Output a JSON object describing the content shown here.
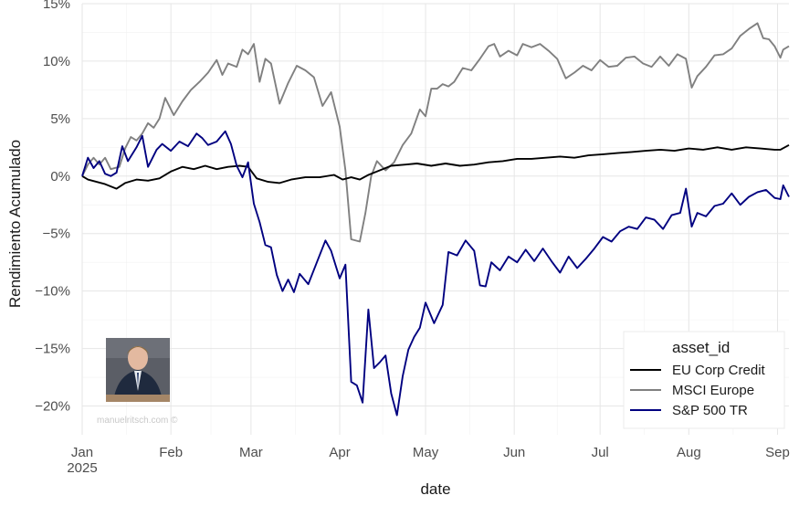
{
  "chart_data": {
    "type": "line",
    "xlabel": "date",
    "ylabel": "Rendimiento Acumulado",
    "y_unit": "%",
    "ylim": [
      -22.5,
      15
    ],
    "y_ticks": [
      {
        "value": 15,
        "label": "15%"
      },
      {
        "value": 10,
        "label": "10%"
      },
      {
        "value": 5,
        "label": "5%"
      },
      {
        "value": 0,
        "label": "0%"
      },
      {
        "value": -5,
        "label": "−5%"
      },
      {
        "value": -10,
        "label": "−10%"
      },
      {
        "value": -15,
        "label": "−15%"
      },
      {
        "value": -20,
        "label": "−20%"
      }
    ],
    "x_range": [
      "2025-01-01",
      "2025-09-05"
    ],
    "x_ticks": [
      {
        "date": "2025-01-01",
        "label": "Jan",
        "sublabel": "2025"
      },
      {
        "date": "2025-02-01",
        "label": "Feb"
      },
      {
        "date": "2025-03-01",
        "label": "Mar"
      },
      {
        "date": "2025-04-01",
        "label": "Apr"
      },
      {
        "date": "2025-05-01",
        "label": "May"
      },
      {
        "date": "2025-06-01",
        "label": "Jun"
      },
      {
        "date": "2025-07-01",
        "label": "Jul"
      },
      {
        "date": "2025-08-01",
        "label": "Aug"
      },
      {
        "date": "2025-09-01",
        "label": "Sep"
      }
    ],
    "grid": true,
    "legend": {
      "title": "asset_id",
      "position": "bottom-right"
    },
    "series": [
      {
        "name": "EU Corp Credit",
        "color": "#000000",
        "points": [
          [
            "2025-01-01",
            0
          ],
          [
            "2025-01-03",
            -0.3
          ],
          [
            "2025-01-06",
            -0.5
          ],
          [
            "2025-01-09",
            -0.7
          ],
          [
            "2025-01-13",
            -1.1
          ],
          [
            "2025-01-16",
            -0.6
          ],
          [
            "2025-01-20",
            -0.3
          ],
          [
            "2025-01-24",
            -0.4
          ],
          [
            "2025-01-28",
            -0.2
          ],
          [
            "2025-02-01",
            0.4
          ],
          [
            "2025-02-05",
            0.8
          ],
          [
            "2025-02-09",
            0.6
          ],
          [
            "2025-02-13",
            0.9
          ],
          [
            "2025-02-17",
            0.6
          ],
          [
            "2025-02-21",
            0.8
          ],
          [
            "2025-02-25",
            0.9
          ],
          [
            "2025-02-28",
            0.8
          ],
          [
            "2025-03-03",
            -0.2
          ],
          [
            "2025-03-07",
            -0.5
          ],
          [
            "2025-03-11",
            -0.6
          ],
          [
            "2025-03-15",
            -0.3
          ],
          [
            "2025-03-20",
            -0.1
          ],
          [
            "2025-03-25",
            -0.1
          ],
          [
            "2025-03-30",
            0.1
          ],
          [
            "2025-04-02",
            -0.3
          ],
          [
            "2025-04-05",
            -0.1
          ],
          [
            "2025-04-08",
            -0.3
          ],
          [
            "2025-04-11",
            0.1
          ],
          [
            "2025-04-15",
            0.5
          ],
          [
            "2025-04-19",
            0.9
          ],
          [
            "2025-04-24",
            1.0
          ],
          [
            "2025-04-28",
            1.1
          ],
          [
            "2025-05-03",
            0.9
          ],
          [
            "2025-05-08",
            1.1
          ],
          [
            "2025-05-13",
            0.9
          ],
          [
            "2025-05-18",
            1.0
          ],
          [
            "2025-05-23",
            1.2
          ],
          [
            "2025-05-28",
            1.3
          ],
          [
            "2025-06-02",
            1.5
          ],
          [
            "2025-06-07",
            1.5
          ],
          [
            "2025-06-12",
            1.6
          ],
          [
            "2025-06-17",
            1.7
          ],
          [
            "2025-06-22",
            1.6
          ],
          [
            "2025-06-27",
            1.8
          ],
          [
            "2025-07-02",
            1.9
          ],
          [
            "2025-07-07",
            2.0
          ],
          [
            "2025-07-12",
            2.1
          ],
          [
            "2025-07-17",
            2.2
          ],
          [
            "2025-07-22",
            2.3
          ],
          [
            "2025-07-27",
            2.2
          ],
          [
            "2025-08-01",
            2.4
          ],
          [
            "2025-08-06",
            2.3
          ],
          [
            "2025-08-11",
            2.5
          ],
          [
            "2025-08-16",
            2.3
          ],
          [
            "2025-08-21",
            2.5
          ],
          [
            "2025-08-26",
            2.4
          ],
          [
            "2025-08-31",
            2.3
          ],
          [
            "2025-09-02",
            2.3
          ],
          [
            "2025-09-05",
            2.7
          ]
        ]
      },
      {
        "name": "MSCI Europe",
        "color": "#808080",
        "points": [
          [
            "2025-01-01",
            0
          ],
          [
            "2025-01-03",
            1.0
          ],
          [
            "2025-01-05",
            1.6
          ],
          [
            "2025-01-07",
            1.0
          ],
          [
            "2025-01-09",
            1.6
          ],
          [
            "2025-01-11",
            0.6
          ],
          [
            "2025-01-14",
            0.8
          ],
          [
            "2025-01-16",
            2.4
          ],
          [
            "2025-01-18",
            3.4
          ],
          [
            "2025-01-20",
            3.1
          ],
          [
            "2025-01-22",
            3.7
          ],
          [
            "2025-01-24",
            4.6
          ],
          [
            "2025-01-26",
            4.2
          ],
          [
            "2025-01-28",
            5.0
          ],
          [
            "2025-01-30",
            6.8
          ],
          [
            "2025-02-02",
            5.3
          ],
          [
            "2025-02-05",
            6.5
          ],
          [
            "2025-02-08",
            7.5
          ],
          [
            "2025-02-11",
            8.2
          ],
          [
            "2025-02-14",
            9.0
          ],
          [
            "2025-02-17",
            10.1
          ],
          [
            "2025-02-19",
            8.8
          ],
          [
            "2025-02-21",
            9.8
          ],
          [
            "2025-02-24",
            9.5
          ],
          [
            "2025-02-26",
            11.0
          ],
          [
            "2025-02-28",
            10.6
          ],
          [
            "2025-03-02",
            11.5
          ],
          [
            "2025-03-04",
            8.2
          ],
          [
            "2025-03-06",
            10.2
          ],
          [
            "2025-03-08",
            9.8
          ],
          [
            "2025-03-11",
            6.3
          ],
          [
            "2025-03-14",
            8.1
          ],
          [
            "2025-03-17",
            9.6
          ],
          [
            "2025-03-20",
            9.2
          ],
          [
            "2025-03-23",
            8.6
          ],
          [
            "2025-03-26",
            6.1
          ],
          [
            "2025-03-29",
            7.3
          ],
          [
            "2025-04-01",
            4.3
          ],
          [
            "2025-04-03",
            0.5
          ],
          [
            "2025-04-05",
            -5.5
          ],
          [
            "2025-04-08",
            -5.7
          ],
          [
            "2025-04-10",
            -3.2
          ],
          [
            "2025-04-12",
            0.0
          ],
          [
            "2025-04-14",
            1.3
          ],
          [
            "2025-04-17",
            0.5
          ],
          [
            "2025-04-20",
            1.2
          ],
          [
            "2025-04-23",
            2.7
          ],
          [
            "2025-04-26",
            3.7
          ],
          [
            "2025-04-29",
            5.8
          ],
          [
            "2025-05-01",
            5.2
          ],
          [
            "2025-05-03",
            7.6
          ],
          [
            "2025-05-05",
            7.6
          ],
          [
            "2025-05-07",
            8.0
          ],
          [
            "2025-05-09",
            7.8
          ],
          [
            "2025-05-11",
            8.2
          ],
          [
            "2025-05-14",
            9.4
          ],
          [
            "2025-05-17",
            9.2
          ],
          [
            "2025-05-20",
            10.2
          ],
          [
            "2025-05-23",
            11.3
          ],
          [
            "2025-05-25",
            11.5
          ],
          [
            "2025-05-27",
            10.4
          ],
          [
            "2025-05-30",
            10.9
          ],
          [
            "2025-06-02",
            10.5
          ],
          [
            "2025-06-04",
            11.5
          ],
          [
            "2025-06-07",
            11.2
          ],
          [
            "2025-06-10",
            11.5
          ],
          [
            "2025-06-13",
            10.9
          ],
          [
            "2025-06-16",
            10.2
          ],
          [
            "2025-06-19",
            8.5
          ],
          [
            "2025-06-22",
            9.0
          ],
          [
            "2025-06-25",
            9.6
          ],
          [
            "2025-06-28",
            9.2
          ],
          [
            "2025-07-01",
            10.1
          ],
          [
            "2025-07-04",
            9.5
          ],
          [
            "2025-07-07",
            9.6
          ],
          [
            "2025-07-10",
            10.3
          ],
          [
            "2025-07-13",
            10.4
          ],
          [
            "2025-07-16",
            9.8
          ],
          [
            "2025-07-19",
            9.5
          ],
          [
            "2025-07-22",
            10.4
          ],
          [
            "2025-07-25",
            9.6
          ],
          [
            "2025-07-28",
            10.6
          ],
          [
            "2025-07-31",
            10.2
          ],
          [
            "2025-08-02",
            7.7
          ],
          [
            "2025-08-04",
            8.7
          ],
          [
            "2025-08-07",
            9.5
          ],
          [
            "2025-08-10",
            10.5
          ],
          [
            "2025-08-13",
            10.6
          ],
          [
            "2025-08-16",
            11.1
          ],
          [
            "2025-08-19",
            12.2
          ],
          [
            "2025-08-22",
            12.8
          ],
          [
            "2025-08-25",
            13.3
          ],
          [
            "2025-08-27",
            12.0
          ],
          [
            "2025-08-29",
            11.9
          ],
          [
            "2025-08-31",
            11.3
          ],
          [
            "2025-09-02",
            10.3
          ],
          [
            "2025-09-03",
            11.0
          ],
          [
            "2025-09-05",
            11.3
          ]
        ]
      },
      {
        "name": "S&P 500 TR",
        "color": "#000080",
        "points": [
          [
            "2025-01-01",
            0
          ],
          [
            "2025-01-03",
            1.6
          ],
          [
            "2025-01-05",
            0.7
          ],
          [
            "2025-01-07",
            1.3
          ],
          [
            "2025-01-09",
            0.2
          ],
          [
            "2025-01-11",
            0.0
          ],
          [
            "2025-01-13",
            0.3
          ],
          [
            "2025-01-15",
            2.6
          ],
          [
            "2025-01-17",
            1.3
          ],
          [
            "2025-01-20",
            2.5
          ],
          [
            "2025-01-22",
            3.5
          ],
          [
            "2025-01-24",
            0.8
          ],
          [
            "2025-01-27",
            2.3
          ],
          [
            "2025-01-29",
            2.8
          ],
          [
            "2025-02-01",
            2.2
          ],
          [
            "2025-02-04",
            3.0
          ],
          [
            "2025-02-07",
            2.6
          ],
          [
            "2025-02-10",
            3.7
          ],
          [
            "2025-02-12",
            3.3
          ],
          [
            "2025-02-14",
            2.7
          ],
          [
            "2025-02-17",
            3.0
          ],
          [
            "2025-02-20",
            3.9
          ],
          [
            "2025-02-22",
            2.8
          ],
          [
            "2025-02-24",
            0.9
          ],
          [
            "2025-02-26",
            -0.1
          ],
          [
            "2025-02-28",
            1.2
          ],
          [
            "2025-03-02",
            -2.4
          ],
          [
            "2025-03-04",
            -4.0
          ],
          [
            "2025-03-06",
            -6.0
          ],
          [
            "2025-03-08",
            -6.2
          ],
          [
            "2025-03-10",
            -8.6
          ],
          [
            "2025-03-12",
            -10.0
          ],
          [
            "2025-03-14",
            -9.0
          ],
          [
            "2025-03-16",
            -10.1
          ],
          [
            "2025-03-18",
            -8.5
          ],
          [
            "2025-03-21",
            -9.4
          ],
          [
            "2025-03-24",
            -7.5
          ],
          [
            "2025-03-27",
            -5.6
          ],
          [
            "2025-03-29",
            -6.5
          ],
          [
            "2025-04-01",
            -8.9
          ],
          [
            "2025-04-03",
            -7.7
          ],
          [
            "2025-04-05",
            -17.9
          ],
          [
            "2025-04-07",
            -18.2
          ],
          [
            "2025-04-09",
            -19.7
          ],
          [
            "2025-04-11",
            -11.6
          ],
          [
            "2025-04-13",
            -16.7
          ],
          [
            "2025-04-15",
            -16.2
          ],
          [
            "2025-04-17",
            -15.6
          ],
          [
            "2025-04-19",
            -18.9
          ],
          [
            "2025-04-21",
            -20.8
          ],
          [
            "2025-04-23",
            -17.4
          ],
          [
            "2025-04-25",
            -15.1
          ],
          [
            "2025-04-27",
            -14.0
          ],
          [
            "2025-04-29",
            -13.2
          ],
          [
            "2025-05-01",
            -11.0
          ],
          [
            "2025-05-04",
            -12.8
          ],
          [
            "2025-05-07",
            -11.2
          ],
          [
            "2025-05-09",
            -6.6
          ],
          [
            "2025-05-12",
            -6.9
          ],
          [
            "2025-05-15",
            -5.6
          ],
          [
            "2025-05-18",
            -6.5
          ],
          [
            "2025-05-20",
            -9.5
          ],
          [
            "2025-05-22",
            -9.6
          ],
          [
            "2025-05-24",
            -7.5
          ],
          [
            "2025-05-27",
            -8.2
          ],
          [
            "2025-05-30",
            -7.0
          ],
          [
            "2025-06-02",
            -7.5
          ],
          [
            "2025-06-05",
            -6.4
          ],
          [
            "2025-06-08",
            -7.4
          ],
          [
            "2025-06-11",
            -6.3
          ],
          [
            "2025-06-14",
            -7.4
          ],
          [
            "2025-06-17",
            -8.4
          ],
          [
            "2025-06-20",
            -7.0
          ],
          [
            "2025-06-23",
            -8.0
          ],
          [
            "2025-06-26",
            -7.2
          ],
          [
            "2025-06-29",
            -6.3
          ],
          [
            "2025-07-02",
            -5.3
          ],
          [
            "2025-07-05",
            -5.7
          ],
          [
            "2025-07-08",
            -4.8
          ],
          [
            "2025-07-11",
            -4.4
          ],
          [
            "2025-07-14",
            -4.6
          ],
          [
            "2025-07-17",
            -3.6
          ],
          [
            "2025-07-20",
            -3.8
          ],
          [
            "2025-07-23",
            -4.6
          ],
          [
            "2025-07-26",
            -3.4
          ],
          [
            "2025-07-29",
            -3.2
          ],
          [
            "2025-07-31",
            -1.1
          ],
          [
            "2025-08-02",
            -4.4
          ],
          [
            "2025-08-04",
            -3.2
          ],
          [
            "2025-08-07",
            -3.5
          ],
          [
            "2025-08-10",
            -2.6
          ],
          [
            "2025-08-13",
            -2.4
          ],
          [
            "2025-08-16",
            -1.5
          ],
          [
            "2025-08-19",
            -2.5
          ],
          [
            "2025-08-22",
            -1.8
          ],
          [
            "2025-08-25",
            -1.4
          ],
          [
            "2025-08-28",
            -1.2
          ],
          [
            "2025-08-31",
            -1.9
          ],
          [
            "2025-09-02",
            -2.0
          ],
          [
            "2025-09-03",
            -0.8
          ],
          [
            "2025-09-05",
            -1.8
          ]
        ]
      }
    ]
  },
  "watermark": {
    "text": "manuelritsch.com ©"
  },
  "avatar": {
    "description_icon": "person-photo-icon"
  }
}
